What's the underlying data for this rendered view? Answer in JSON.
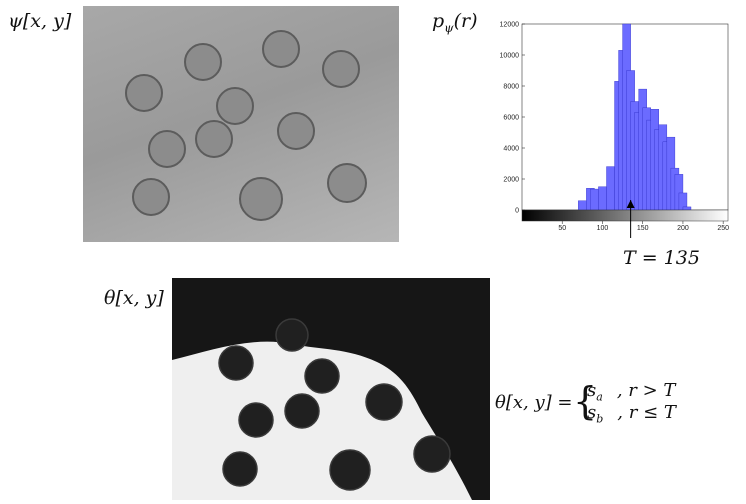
{
  "labels": {
    "psi": "ψ[x, y]",
    "p_main": "p",
    "p_sub": "ψ",
    "p_arg": "(r)",
    "threshold": "T = 135",
    "theta": "θ[x, y]",
    "eq_lhs": "θ[x, y] =",
    "case1_s": "s",
    "case1_sub": "a",
    "case1_cond": ", r > T",
    "case2_s": "s",
    "case2_sub": "b",
    "case2_cond": ", r ≤ T"
  },
  "colors": {
    "histogram_fill": "#6b6bff",
    "histogram_edge": "#3030c8",
    "marker": "#000000"
  },
  "chart_data": {
    "type": "bar",
    "x_ticks": [
      50,
      100,
      150,
      200,
      250
    ],
    "y_ticks": [
      0,
      2000,
      4000,
      6000,
      8000,
      10000,
      12000
    ],
    "xlim": [
      0,
      256
    ],
    "ylim": [
      0,
      12000
    ],
    "threshold_value": 135,
    "bins": [
      75,
      85,
      90,
      100,
      110,
      120,
      125,
      130,
      135,
      140,
      145,
      150,
      155,
      160,
      165,
      170,
      175,
      180,
      185,
      190,
      195,
      200,
      205
    ],
    "counts": [
      600,
      1400,
      1350,
      1500,
      2800,
      8300,
      10300,
      12000,
      9000,
      7000,
      6300,
      7800,
      6600,
      5800,
      6500,
      5200,
      5500,
      4400,
      4700,
      2700,
      2300,
      1100,
      200
    ]
  }
}
